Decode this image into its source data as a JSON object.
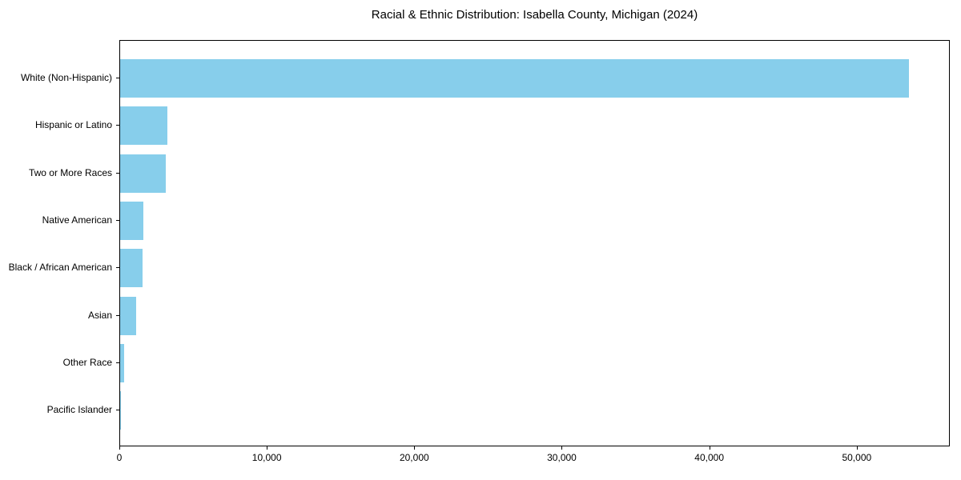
{
  "chart_data": {
    "type": "bar",
    "orientation": "horizontal",
    "title": "Racial & Ethnic Distribution: Isabella County, Michigan (2024)",
    "xlabel": "",
    "ylabel": "",
    "categories": [
      "White (Non-Hispanic)",
      "Hispanic or Latino",
      "Two or More Races",
      "Native American",
      "Black / African American",
      "Asian",
      "Other Race",
      "Pacific Islander"
    ],
    "values": [
      53500,
      3200,
      3100,
      1600,
      1500,
      1100,
      250,
      30
    ],
    "bar_color": "#87CEEB",
    "xlim": [
      0,
      56200
    ],
    "x_ticks": [
      0,
      10000,
      20000,
      30000,
      40000,
      50000
    ],
    "x_tick_labels": [
      "0",
      "10,000",
      "20,000",
      "30,000",
      "40,000",
      "50,000"
    ],
    "grid": false,
    "legend": null,
    "background_color": "#ffffff",
    "axis_color": "#000000"
  }
}
